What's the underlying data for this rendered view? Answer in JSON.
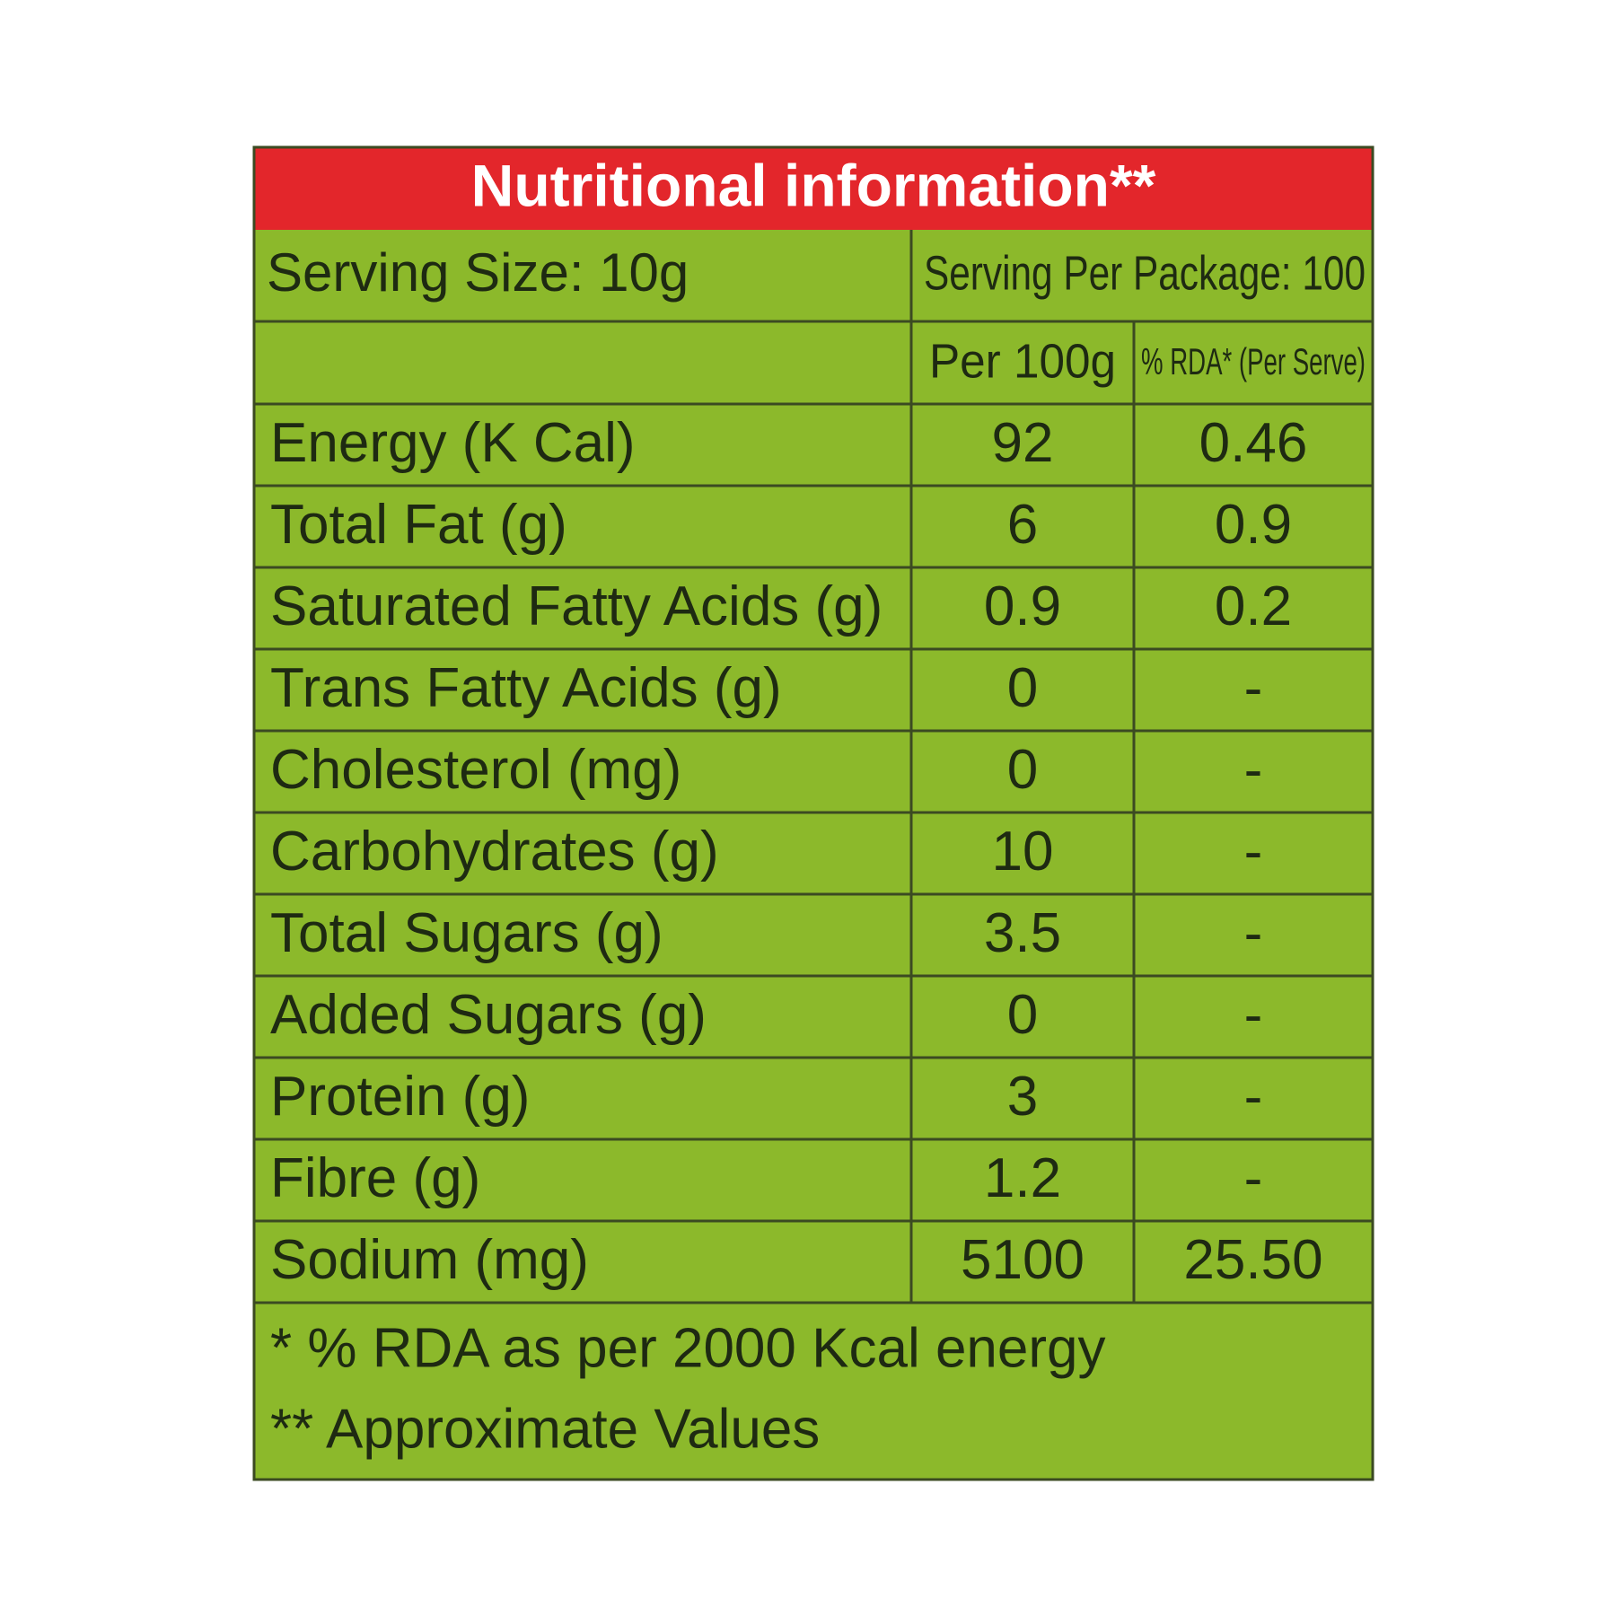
{
  "header": {
    "title": "Nutritional information**"
  },
  "serving": {
    "size": "Serving Size: 10g",
    "per_package": "Serving Per Package: 100"
  },
  "table": {
    "columns": [
      "Per 100g",
      "% RDA* (Per Serve)"
    ],
    "rows": [
      [
        "Energy (K Cal)",
        "92",
        "0.46"
      ],
      [
        "Total Fat (g)",
        "6",
        "0.9"
      ],
      [
        "Saturated Fatty Acids (g)",
        "0.9",
        "0.2"
      ],
      [
        "Trans Fatty Acids (g)",
        "0",
        "-"
      ],
      [
        "Cholesterol (mg)",
        "0",
        "-"
      ],
      [
        "Carbohydrates (g)",
        "10",
        "-"
      ],
      [
        "Total Sugars (g)",
        "3.5",
        "-"
      ],
      [
        "Added Sugars (g)",
        "0",
        "-"
      ],
      [
        "Protein (g)",
        "3",
        "-"
      ],
      [
        "Fibre (g)",
        "1.2",
        "-"
      ],
      [
        "Sodium (mg)",
        "5100",
        "25.50"
      ]
    ]
  },
  "footnotes": [
    "* % RDA as per 2000 Kcal energy",
    "** Approximate Values"
  ]
}
